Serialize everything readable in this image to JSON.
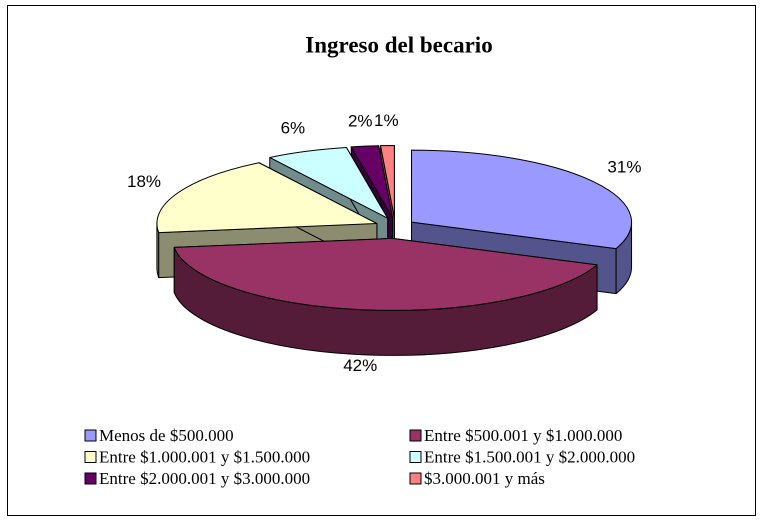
{
  "chart_data": {
    "type": "pie3d",
    "title": "Ingreso del becario",
    "categories": [
      "Menos de $500.000",
      "Entre $500.001 y $1.000.000",
      "Entre $1.000.001 y $1.500.000",
      "Entre $1.500.001 y $2.000.000",
      "Entre $2.000.001 y $3.000.000",
      "$3.000.001 y más"
    ],
    "values": [
      31,
      42,
      18,
      6,
      2,
      1
    ],
    "value_labels": [
      "31%",
      "42%",
      "18%",
      "6%",
      "2%",
      "1%"
    ],
    "colors": [
      "#9999ff",
      "#993366",
      "#ffffcc",
      "#ccffff",
      "#660066",
      "#ff8080"
    ],
    "legend": "bottom"
  }
}
